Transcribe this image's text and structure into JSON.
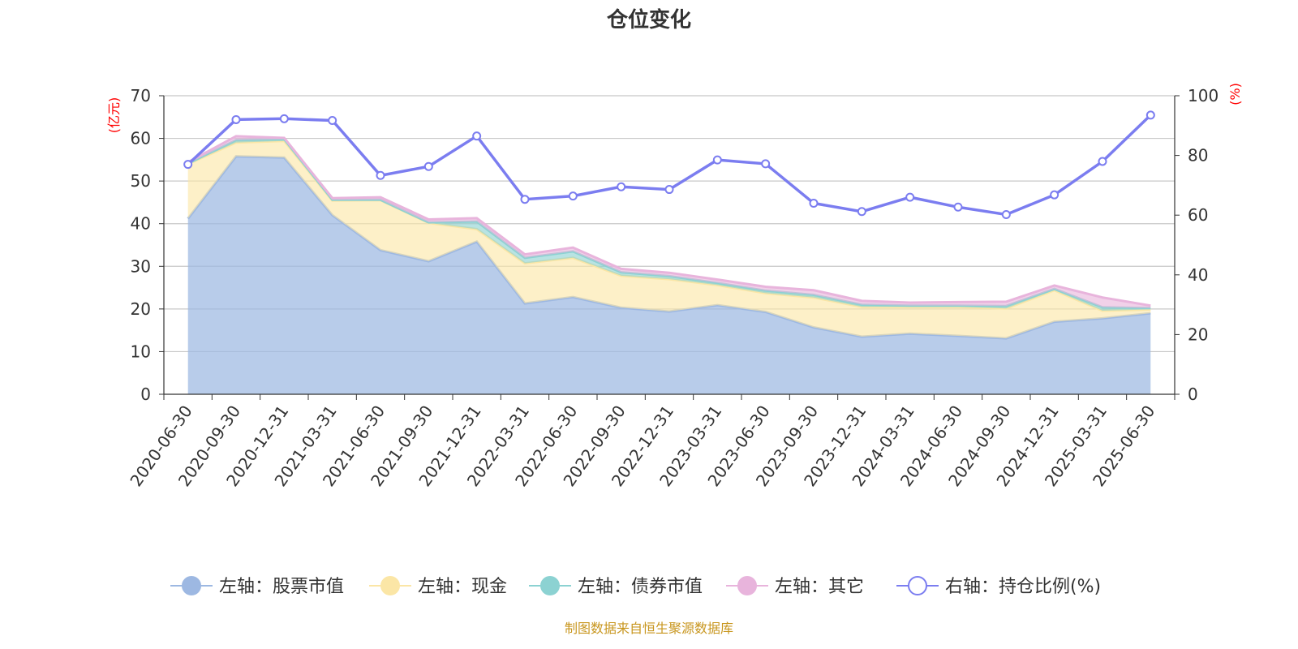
{
  "chart_data": {
    "type": "area",
    "title": "仓位变化",
    "left_axis_unit": "(亿元)",
    "right_axis_unit": "(%)",
    "categories": [
      "2020-06-30",
      "2020-09-30",
      "2020-12-31",
      "2021-03-31",
      "2021-06-30",
      "2021-09-30",
      "2021-12-31",
      "2022-03-31",
      "2022-06-30",
      "2022-09-30",
      "2022-12-31",
      "2023-03-31",
      "2023-06-30",
      "2023-09-30",
      "2023-12-31",
      "2024-03-31",
      "2024-06-30",
      "2024-09-30",
      "2024-12-31",
      "2025-03-31",
      "2025-06-30"
    ],
    "left_ylim": [
      0,
      70
    ],
    "left_ticks": [
      "0",
      "10",
      "20",
      "30",
      "40",
      "50",
      "60",
      "70"
    ],
    "right_ylim": [
      0,
      100
    ],
    "right_ticks": [
      "0",
      "20",
      "40",
      "60",
      "80",
      "100"
    ],
    "grid": true,
    "legend_position": "bottom",
    "stacked_series": [
      {
        "name": "左轴：股票市值",
        "color": "#9db8e2",
        "values": [
          41.2,
          55.8,
          55.5,
          42.0,
          33.8,
          31.2,
          35.8,
          21.3,
          22.8,
          20.3,
          19.4,
          20.9,
          19.3,
          15.7,
          13.5,
          14.2,
          13.7,
          13.1,
          17.0,
          17.8,
          19.0
        ]
      },
      {
        "name": "左轴：现金",
        "color": "#fbe6a6",
        "values": [
          12.8,
          3.2,
          3.9,
          3.4,
          11.7,
          9.0,
          2.9,
          9.4,
          9.2,
          7.5,
          7.6,
          4.7,
          4.4,
          7.0,
          7.0,
          6.3,
          6.8,
          7.0,
          7.4,
          1.8,
          0.9
        ]
      },
      {
        "name": "左轴：债券市值",
        "color": "#8cd2d2",
        "values": [
          0.1,
          0.6,
          0.4,
          0.2,
          0.1,
          0.1,
          1.8,
          1.3,
          1.5,
          0.8,
          0.7,
          0.5,
          0.6,
          0.6,
          0.5,
          0.3,
          0.3,
          0.6,
          0.3,
          0.8,
          0.3
        ]
      },
      {
        "name": "左轴：其它",
        "color": "#e8b4dc",
        "values": [
          0.3,
          0.9,
          0.3,
          0.4,
          0.6,
          0.7,
          0.8,
          0.8,
          0.9,
          0.8,
          0.8,
          0.8,
          0.9,
          1.1,
          0.9,
          0.7,
          0.8,
          1.0,
          0.8,
          2.3,
          0.6
        ]
      }
    ],
    "line_series": {
      "name": "右轴：持仓比例(%)",
      "color": "#7b7df0",
      "values": [
        77.0,
        92.0,
        92.3,
        91.7,
        73.3,
        76.3,
        86.5,
        65.3,
        66.4,
        69.5,
        68.6,
        78.5,
        77.2,
        64.0,
        61.2,
        66.0,
        62.7,
        60.2,
        66.8,
        78.0,
        93.5
      ]
    }
  },
  "source_text": "制图数据来自恒生聚源数据库"
}
